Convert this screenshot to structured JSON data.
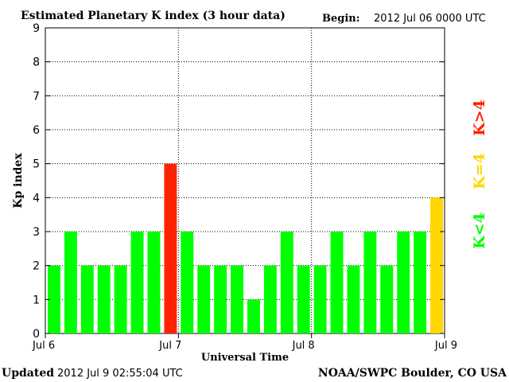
{
  "header": {
    "title": "Estimated Planetary K index (3 hour data)",
    "begin_label": "Begin:",
    "begin_value": "2012 Jul 06 0000 UTC"
  },
  "footer": {
    "updated_label": "Updated",
    "updated_value": "2012 Jul  9 02:55:04 UTC",
    "source": "NOAA/SWPC Boulder, CO USA"
  },
  "legend": {
    "high": "K>4",
    "equal": "K=4",
    "low": "K<4"
  },
  "colors": {
    "low": "#00ff00",
    "equal": "#ffd700",
    "high": "#ff2200",
    "axis": "#000000",
    "grid": "#000000"
  },
  "chart_data": {
    "type": "bar",
    "title": "Estimated Planetary K index (3 hour data)",
    "xlabel": "Universal Time",
    "ylabel": "Kp index",
    "ylim": [
      0,
      9
    ],
    "yticks": [
      "0",
      "1",
      "2",
      "3",
      "4",
      "5",
      "6",
      "7",
      "8",
      "9"
    ],
    "xtick_labels": [
      "Jul 6",
      "Jul 7",
      "Jul 8",
      "Jul 9"
    ],
    "grid": true,
    "bar_interval_hours": 3,
    "values": [
      2,
      3,
      2,
      2,
      2,
      3,
      3,
      5,
      3,
      2,
      2,
      2,
      1,
      2,
      3,
      2,
      2,
      3,
      2,
      3,
      2,
      3,
      3,
      4
    ]
  }
}
